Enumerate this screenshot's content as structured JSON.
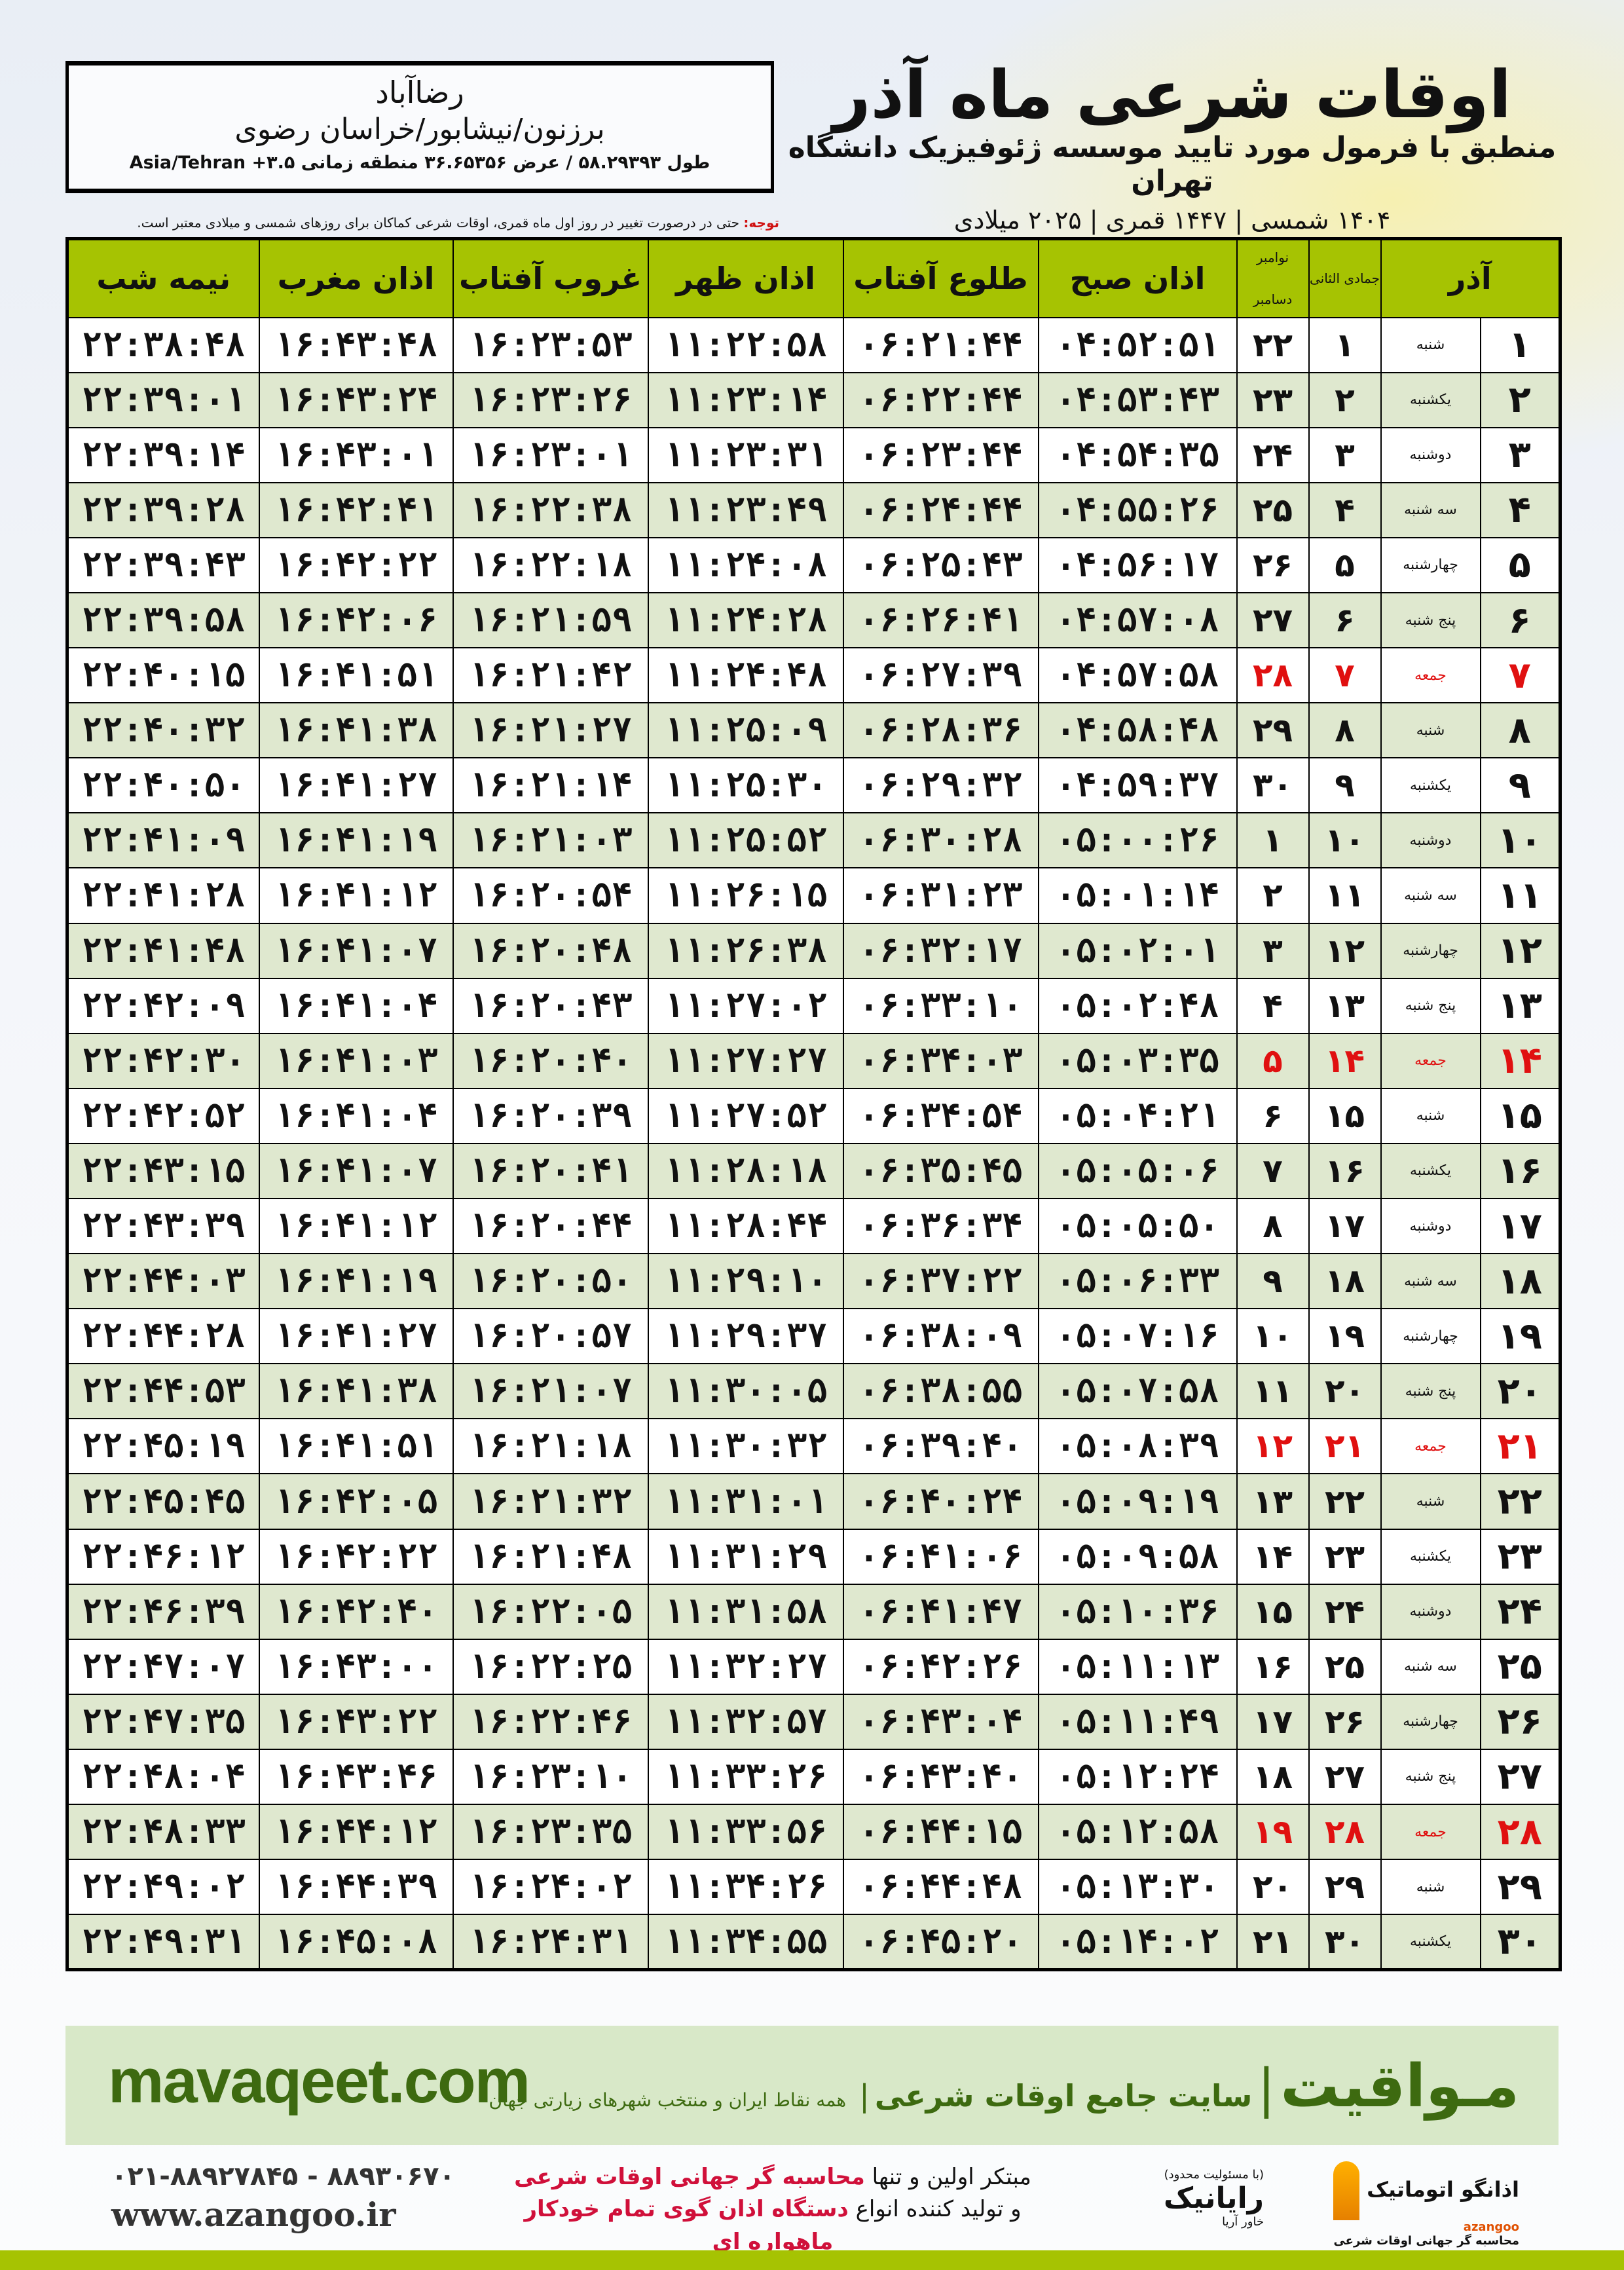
{
  "header": {
    "title": "اوقات شرعی ماه آذر",
    "subtitle": "منطبق با فرمول مورد تایید موسسه ژئوفیزیک دانشگاه تهران",
    "years": "۱۴۰۴ شمسی | ۱۴۴۷ قمری | ۲۰۲۵ میلادی"
  },
  "location": {
    "city": "رضاآباد",
    "region": "برزنون/نیشابور/خراسان رضوی",
    "coords": "طول ۵۸.۲۹۳۹۳ / عرض ۳۶.۶۵۳۵۶ منطقه زمانی ۳.۵+ Asia/Tehran"
  },
  "note": {
    "label": "توجه:",
    "text": " حتی در درصورت تغییر در روز اول ماه قمری، اوقات شرعی کماکان برای روزهای شمسی و میلادی معتبر است."
  },
  "table": {
    "headers": {
      "azar": "آذر",
      "hijri": "جمادی الثانی",
      "gregorian_top": "نوامبر",
      "gregorian_bottom": "دسامبر",
      "subh": "اذان صبح",
      "tolu": "طلوع آفتاب",
      "zohr": "اذان ظهر",
      "ghorub": "غروب آفتاب",
      "maghrib": "اذان مغرب",
      "nimeh": "نیمه شب"
    },
    "friday_color": "#e01010",
    "header_color": "#a6c302",
    "rows": [
      [
        "۱",
        "شنبه",
        "۱",
        "۲۲",
        "۰۴:۵۲:۵۱",
        "۰۶:۲۱:۴۴",
        "۱۱:۲۲:۵۸",
        "۱۶:۲۳:۵۳",
        "۱۶:۴۳:۴۸",
        "۲۲:۳۸:۴۸"
      ],
      [
        "۲",
        "یکشنبه",
        "۲",
        "۲۳",
        "۰۴:۵۳:۴۳",
        "۰۶:۲۲:۴۴",
        "۱۱:۲۳:۱۴",
        "۱۶:۲۳:۲۶",
        "۱۶:۴۳:۲۴",
        "۲۲:۳۹:۰۱"
      ],
      [
        "۳",
        "دوشنبه",
        "۳",
        "۲۴",
        "۰۴:۵۴:۳۵",
        "۰۶:۲۳:۴۴",
        "۱۱:۲۳:۳۱",
        "۱۶:۲۳:۰۱",
        "۱۶:۴۳:۰۱",
        "۲۲:۳۹:۱۴"
      ],
      [
        "۴",
        "سه شنبه",
        "۴",
        "۲۵",
        "۰۴:۵۵:۲۶",
        "۰۶:۲۴:۴۴",
        "۱۱:۲۳:۴۹",
        "۱۶:۲۲:۳۸",
        "۱۶:۴۲:۴۱",
        "۲۲:۳۹:۲۸"
      ],
      [
        "۵",
        "چهارشنبه",
        "۵",
        "۲۶",
        "۰۴:۵۶:۱۷",
        "۰۶:۲۵:۴۳",
        "۱۱:۲۴:۰۸",
        "۱۶:۲۲:۱۸",
        "۱۶:۴۲:۲۲",
        "۲۲:۳۹:۴۳"
      ],
      [
        "۶",
        "پنج شنبه",
        "۶",
        "۲۷",
        "۰۴:۵۷:۰۸",
        "۰۶:۲۶:۴۱",
        "۱۱:۲۴:۲۸",
        "۱۶:۲۱:۵۹",
        "۱۶:۴۲:۰۶",
        "۲۲:۳۹:۵۸"
      ],
      [
        "۷",
        "جمعه",
        "۷",
        "۲۸",
        "۰۴:۵۷:۵۸",
        "۰۶:۲۷:۳۹",
        "۱۱:۲۴:۴۸",
        "۱۶:۲۱:۴۲",
        "۱۶:۴۱:۵۱",
        "۲۲:۴۰:۱۵"
      ],
      [
        "۸",
        "شنبه",
        "۸",
        "۲۹",
        "۰۴:۵۸:۴۸",
        "۰۶:۲۸:۳۶",
        "۱۱:۲۵:۰۹",
        "۱۶:۲۱:۲۷",
        "۱۶:۴۱:۳۸",
        "۲۲:۴۰:۳۲"
      ],
      [
        "۹",
        "یکشنبه",
        "۹",
        "۳۰",
        "۰۴:۵۹:۳۷",
        "۰۶:۲۹:۳۲",
        "۱۱:۲۵:۳۰",
        "۱۶:۲۱:۱۴",
        "۱۶:۴۱:۲۷",
        "۲۲:۴۰:۵۰"
      ],
      [
        "۱۰",
        "دوشنبه",
        "۱۰",
        "۱",
        "۰۵:۰۰:۲۶",
        "۰۶:۳۰:۲۸",
        "۱۱:۲۵:۵۲",
        "۱۶:۲۱:۰۳",
        "۱۶:۴۱:۱۹",
        "۲۲:۴۱:۰۹"
      ],
      [
        "۱۱",
        "سه شنبه",
        "۱۱",
        "۲",
        "۰۵:۰۱:۱۴",
        "۰۶:۳۱:۲۳",
        "۱۱:۲۶:۱۵",
        "۱۶:۲۰:۵۴",
        "۱۶:۴۱:۱۲",
        "۲۲:۴۱:۲۸"
      ],
      [
        "۱۲",
        "چهارشنبه",
        "۱۲",
        "۳",
        "۰۵:۰۲:۰۱",
        "۰۶:۳۲:۱۷",
        "۱۱:۲۶:۳۸",
        "۱۶:۲۰:۴۸",
        "۱۶:۴۱:۰۷",
        "۲۲:۴۱:۴۸"
      ],
      [
        "۱۳",
        "پنج شنبه",
        "۱۳",
        "۴",
        "۰۵:۰۲:۴۸",
        "۰۶:۳۳:۱۰",
        "۱۱:۲۷:۰۲",
        "۱۶:۲۰:۴۳",
        "۱۶:۴۱:۰۴",
        "۲۲:۴۲:۰۹"
      ],
      [
        "۱۴",
        "جمعه",
        "۱۴",
        "۵",
        "۰۵:۰۳:۳۵",
        "۰۶:۳۴:۰۳",
        "۱۱:۲۷:۲۷",
        "۱۶:۲۰:۴۰",
        "۱۶:۴۱:۰۳",
        "۲۲:۴۲:۳۰"
      ],
      [
        "۱۵",
        "شنبه",
        "۱۵",
        "۶",
        "۰۵:۰۴:۲۱",
        "۰۶:۳۴:۵۴",
        "۱۱:۲۷:۵۲",
        "۱۶:۲۰:۳۹",
        "۱۶:۴۱:۰۴",
        "۲۲:۴۲:۵۲"
      ],
      [
        "۱۶",
        "یکشنبه",
        "۱۶",
        "۷",
        "۰۵:۰۵:۰۶",
        "۰۶:۳۵:۴۵",
        "۱۱:۲۸:۱۸",
        "۱۶:۲۰:۴۱",
        "۱۶:۴۱:۰۷",
        "۲۲:۴۳:۱۵"
      ],
      [
        "۱۷",
        "دوشنبه",
        "۱۷",
        "۸",
        "۰۵:۰۵:۵۰",
        "۰۶:۳۶:۳۴",
        "۱۱:۲۸:۴۴",
        "۱۶:۲۰:۴۴",
        "۱۶:۴۱:۱۲",
        "۲۲:۴۳:۳۹"
      ],
      [
        "۱۸",
        "سه شنبه",
        "۱۸",
        "۹",
        "۰۵:۰۶:۳۳",
        "۰۶:۳۷:۲۲",
        "۱۱:۲۹:۱۰",
        "۱۶:۲۰:۵۰",
        "۱۶:۴۱:۱۹",
        "۲۲:۴۴:۰۳"
      ],
      [
        "۱۹",
        "چهارشنبه",
        "۱۹",
        "۱۰",
        "۰۵:۰۷:۱۶",
        "۰۶:۳۸:۰۹",
        "۱۱:۲۹:۳۷",
        "۱۶:۲۰:۵۷",
        "۱۶:۴۱:۲۷",
        "۲۲:۴۴:۲۸"
      ],
      [
        "۲۰",
        "پنج شنبه",
        "۲۰",
        "۱۱",
        "۰۵:۰۷:۵۸",
        "۰۶:۳۸:۵۵",
        "۱۱:۳۰:۰۵",
        "۱۶:۲۱:۰۷",
        "۱۶:۴۱:۳۸",
        "۲۲:۴۴:۵۳"
      ],
      [
        "۲۱",
        "جمعه",
        "۲۱",
        "۱۲",
        "۰۵:۰۸:۳۹",
        "۰۶:۳۹:۴۰",
        "۱۱:۳۰:۳۲",
        "۱۶:۲۱:۱۸",
        "۱۶:۴۱:۵۱",
        "۲۲:۴۵:۱۹"
      ],
      [
        "۲۲",
        "شنبه",
        "۲۲",
        "۱۳",
        "۰۵:۰۹:۱۹",
        "۰۶:۴۰:۲۴",
        "۱۱:۳۱:۰۱",
        "۱۶:۲۱:۳۲",
        "۱۶:۴۲:۰۵",
        "۲۲:۴۵:۴۵"
      ],
      [
        "۲۳",
        "یکشنبه",
        "۲۳",
        "۱۴",
        "۰۵:۰۹:۵۸",
        "۰۶:۴۱:۰۶",
        "۱۱:۳۱:۲۹",
        "۱۶:۲۱:۴۸",
        "۱۶:۴۲:۲۲",
        "۲۲:۴۶:۱۲"
      ],
      [
        "۲۴",
        "دوشنبه",
        "۲۴",
        "۱۵",
        "۰۵:۱۰:۳۶",
        "۰۶:۴۱:۴۷",
        "۱۱:۳۱:۵۸",
        "۱۶:۲۲:۰۵",
        "۱۶:۴۲:۴۰",
        "۲۲:۴۶:۳۹"
      ],
      [
        "۲۵",
        "سه شنبه",
        "۲۵",
        "۱۶",
        "۰۵:۱۱:۱۳",
        "۰۶:۴۲:۲۶",
        "۱۱:۳۲:۲۷",
        "۱۶:۲۲:۲۵",
        "۱۶:۴۳:۰۰",
        "۲۲:۴۷:۰۷"
      ],
      [
        "۲۶",
        "چهارشنبه",
        "۲۶",
        "۱۷",
        "۰۵:۱۱:۴۹",
        "۰۶:۴۳:۰۴",
        "۱۱:۳۲:۵۷",
        "۱۶:۲۲:۴۶",
        "۱۶:۴۳:۲۲",
        "۲۲:۴۷:۳۵"
      ],
      [
        "۲۷",
        "پنج شنبه",
        "۲۷",
        "۱۸",
        "۰۵:۱۲:۲۴",
        "۰۶:۴۳:۴۰",
        "۱۱:۳۳:۲۶",
        "۱۶:۲۳:۱۰",
        "۱۶:۴۳:۴۶",
        "۲۲:۴۸:۰۴"
      ],
      [
        "۲۸",
        "جمعه",
        "۲۸",
        "۱۹",
        "۰۵:۱۲:۵۸",
        "۰۶:۴۴:۱۵",
        "۱۱:۳۳:۵۶",
        "۱۶:۲۳:۳۵",
        "۱۶:۴۴:۱۲",
        "۲۲:۴۸:۳۳"
      ],
      [
        "۲۹",
        "شنبه",
        "۲۹",
        "۲۰",
        "۰۵:۱۳:۳۰",
        "۰۶:۴۴:۴۸",
        "۱۱:۳۴:۲۶",
        "۱۶:۲۴:۰۲",
        "۱۶:۴۴:۳۹",
        "۲۲:۴۹:۰۲"
      ],
      [
        "۳۰",
        "یکشنبه",
        "۳۰",
        "۲۱",
        "۰۵:۱۴:۰۲",
        "۰۶:۴۵:۲۰",
        "۱۱:۳۴:۵۵",
        "۱۶:۲۴:۳۱",
        "۱۶:۴۵:۰۸",
        "۲۲:۴۹:۳۱"
      ]
    ]
  },
  "promo": {
    "site": "mavaqeet.com",
    "brand": "مـواقیت",
    "sep": "|",
    "slogan": "سایت جامع اوقات شرعی",
    "sub": "همه نقاط ایران و منتخب شهرهای زیارتی جهان",
    "color": "#3d6a10"
  },
  "footer": {
    "phone": "۰۲۱-۸۸۹۲۷۸۴۵ - ۸۸۹۳۰۶۷۰",
    "web": "www.azangoo.ir",
    "ad_line1_a": "مبتکر اولین و تنها ",
    "ad_line1_b": "محاسبه گر جهانی اوقات شرعی",
    "ad_line2_a": "و تولید کننده انواع ",
    "ad_line2_b": "دستگاه اذان گوی تمام خودکار ماهواره ای",
    "logo1": "اذانگو اتوماتیک",
    "logo1_sub": "محاسبه گر جهانی اوقات شرعی",
    "logo1_en": "azangoo",
    "logo2": "رایانیک",
    "logo2_sub": "خاور آریا",
    "logo2_small": "(با مسئولیت محدود)"
  }
}
